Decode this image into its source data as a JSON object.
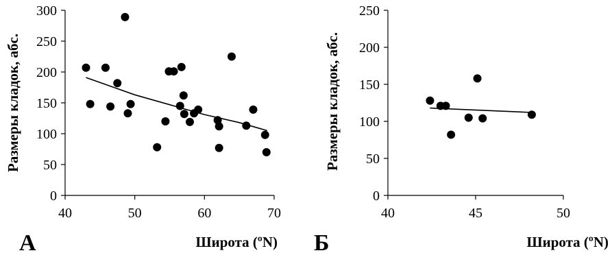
{
  "chart_data": [
    {
      "type": "scatter",
      "panel_label": "А",
      "title": "",
      "xlabel": "Широта (ºN)",
      "ylabel": "Размеры кладок, абс.",
      "xlim": [
        40,
        70
      ],
      "ylim": [
        0,
        300
      ],
      "x_ticks": [
        "40",
        "50",
        "60",
        "70"
      ],
      "y_ticks": [
        "0",
        "50",
        "100",
        "150",
        "200",
        "250",
        "300"
      ],
      "grid": false,
      "legend": "none",
      "points": [
        {
          "x": 43.0,
          "y": 207
        },
        {
          "x": 43.6,
          "y": 148
        },
        {
          "x": 45.8,
          "y": 207
        },
        {
          "x": 46.5,
          "y": 144
        },
        {
          "x": 47.5,
          "y": 182
        },
        {
          "x": 48.6,
          "y": 289
        },
        {
          "x": 49.0,
          "y": 133
        },
        {
          "x": 49.4,
          "y": 148
        },
        {
          "x": 53.2,
          "y": 78
        },
        {
          "x": 54.4,
          "y": 120
        },
        {
          "x": 54.9,
          "y": 201
        },
        {
          "x": 55.6,
          "y": 201
        },
        {
          "x": 56.5,
          "y": 145
        },
        {
          "x": 56.7,
          "y": 208
        },
        {
          "x": 57.0,
          "y": 162
        },
        {
          "x": 57.1,
          "y": 132
        },
        {
          "x": 57.9,
          "y": 119
        },
        {
          "x": 58.5,
          "y": 133
        },
        {
          "x": 59.1,
          "y": 139
        },
        {
          "x": 61.9,
          "y": 122
        },
        {
          "x": 62.1,
          "y": 112
        },
        {
          "x": 62.1,
          "y": 77
        },
        {
          "x": 63.9,
          "y": 225
        },
        {
          "x": 66.0,
          "y": 113
        },
        {
          "x": 67.0,
          "y": 139
        },
        {
          "x": 68.7,
          "y": 98
        },
        {
          "x": 68.9,
          "y": 70
        }
      ],
      "trendline": {
        "type": "power",
        "x": [
          43,
          50,
          55,
          60,
          65,
          69
        ],
        "y": [
          191,
          163,
          147,
          131,
          118,
          105
        ]
      }
    },
    {
      "type": "scatter",
      "panel_label": "Б",
      "title": "",
      "xlabel": "Широта (ºN)",
      "ylabel": "Размеры кладок, абс.",
      "xlim": [
        40,
        50
      ],
      "ylim": [
        0,
        250
      ],
      "x_ticks": [
        "40",
        "45",
        "50"
      ],
      "y_ticks": [
        "0",
        "50",
        "100",
        "150",
        "200",
        "250"
      ],
      "grid": false,
      "legend": "none",
      "points": [
        {
          "x": 42.4,
          "y": 128
        },
        {
          "x": 43.0,
          "y": 121
        },
        {
          "x": 43.3,
          "y": 121
        },
        {
          "x": 43.6,
          "y": 82
        },
        {
          "x": 44.6,
          "y": 105
        },
        {
          "x": 45.1,
          "y": 158
        },
        {
          "x": 45.4,
          "y": 104
        },
        {
          "x": 48.2,
          "y": 109
        }
      ],
      "trendline": {
        "type": "power",
        "x": [
          42.4,
          48.2
        ],
        "y": [
          118,
          112
        ]
      }
    }
  ]
}
